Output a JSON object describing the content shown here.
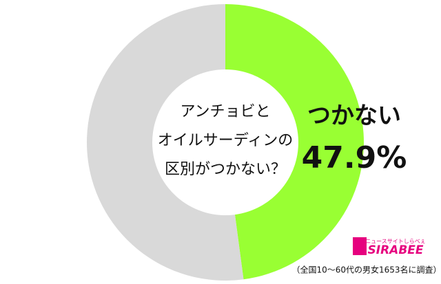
{
  "chart_data": {
    "type": "donut",
    "title_lines": [
      "アンチョビと",
      "オイルサーディンの",
      "区別がつかない？"
    ],
    "categories": [
      "つかない",
      null
    ],
    "values": [
      47.9,
      52.1
    ],
    "value_labels": [
      "47.9%",
      null
    ],
    "colors": [
      "#99ff33",
      "#d9d9d9"
    ],
    "source": "（全国10〜60代の男女1653名に調査）",
    "logo": {
      "tagline": "ニュースサイトしらべぇ",
      "name": "SIRABEE"
    }
  }
}
